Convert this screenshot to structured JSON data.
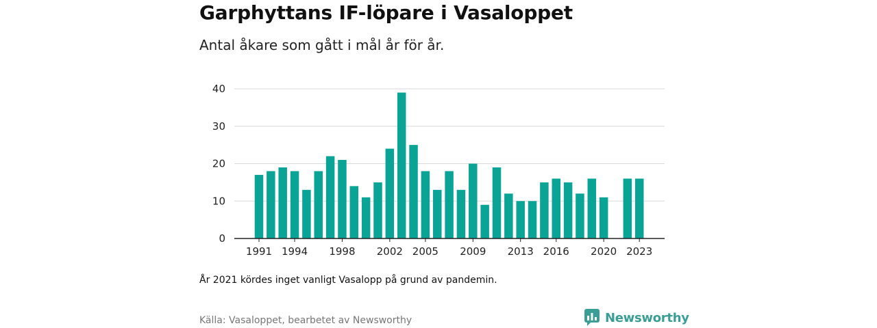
{
  "title": "Garphyttans IF-löpare i Vasaloppet",
  "subtitle": "Antal åkare som gått i mål år för år.",
  "note": "År 2021 kördes inget vanligt Vasalopp på grund av pandemin.",
  "source": "Källa: Vasaloppet, bearbetet av Newsworthy",
  "brand": {
    "name": "Newsworthy",
    "icon": "newsworthy-logo-icon",
    "color": "#3a9e94"
  },
  "colors": {
    "bar": "#0aa496",
    "grid": "#d9d9d9",
    "axis": "#222222"
  },
  "chart_data": {
    "type": "bar",
    "title": "Garphyttans IF-löpare i Vasaloppet",
    "subtitle": "Antal åkare som gått i mål år för år.",
    "xlabel": "",
    "ylabel": "",
    "ylim": [
      0,
      40
    ],
    "yticks": [
      0,
      10,
      20,
      30,
      40
    ],
    "grid": true,
    "legend": "none",
    "categories": [
      1991,
      1992,
      1993,
      1994,
      1995,
      1996,
      1997,
      1998,
      1999,
      2000,
      2001,
      2002,
      2003,
      2004,
      2005,
      2006,
      2007,
      2008,
      2009,
      2010,
      2011,
      2012,
      2013,
      2014,
      2015,
      2016,
      2017,
      2018,
      2019,
      2020,
      2021,
      2022,
      2023
    ],
    "values": [
      17,
      18,
      19,
      18,
      13,
      18,
      22,
      21,
      14,
      11,
      15,
      24,
      39,
      25,
      18,
      13,
      18,
      13,
      20,
      9,
      19,
      12,
      10,
      10,
      15,
      16,
      15,
      12,
      16,
      11,
      null,
      16,
      16
    ],
    "xtick_labels": [
      "1991",
      "1994",
      "1998",
      "2002",
      "2005",
      "2009",
      "2013",
      "2016",
      "2020",
      "2023"
    ]
  }
}
